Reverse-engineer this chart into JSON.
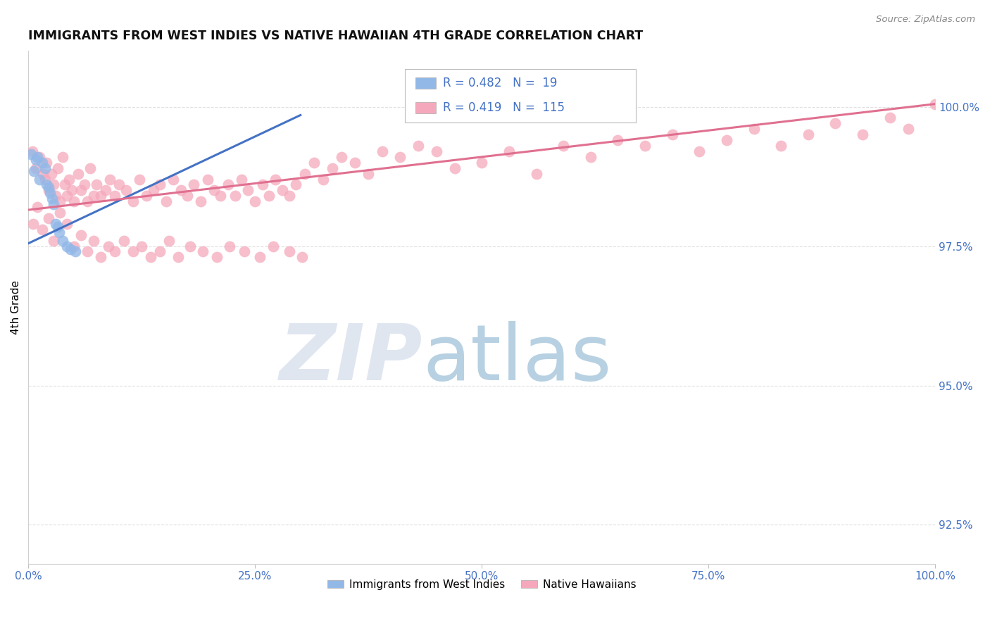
{
  "title": "IMMIGRANTS FROM WEST INDIES VS NATIVE HAWAIIAN 4TH GRADE CORRELATION CHART",
  "source": "Source: ZipAtlas.com",
  "ylabel": "4th Grade",
  "xlim": [
    0.0,
    1.0
  ],
  "ylim": [
    91.8,
    101.0
  ],
  "ytick_positions": [
    92.5,
    95.0,
    97.5,
    100.0
  ],
  "ytick_labels": [
    "92.5%",
    "95.0%",
    "97.5%",
    "100.0%"
  ],
  "xtick_positions": [
    0.0,
    0.25,
    0.5,
    0.75,
    1.0
  ],
  "xtick_labels": [
    "0.0%",
    "25.0%",
    "50.0%",
    "75.0%",
    "100.0%"
  ],
  "legend_blue_r": "0.482",
  "legend_blue_n": "19",
  "legend_pink_r": "0.419",
  "legend_pink_n": "115",
  "blue_color": "#92b8e8",
  "pink_color": "#f5a8bc",
  "blue_line_color": "#4472c4",
  "pink_line_color": "#e07090",
  "blue_scatter_x": [
    0.003,
    0.006,
    0.008,
    0.01,
    0.012,
    0.015,
    0.018,
    0.02,
    0.022,
    0.024,
    0.026,
    0.028,
    0.03,
    0.032,
    0.034,
    0.038,
    0.042,
    0.046,
    0.052
  ],
  "blue_scatter_y": [
    99.15,
    98.85,
    99.05,
    99.1,
    98.7,
    99.0,
    98.9,
    98.6,
    98.55,
    98.45,
    98.35,
    98.25,
    97.9,
    97.85,
    97.75,
    97.6,
    97.5,
    97.45,
    97.4
  ],
  "blue_line_x0": 0.0,
  "blue_line_x1": 0.3,
  "blue_line_y0": 97.55,
  "blue_line_y1": 99.85,
  "pink_line_x0": 0.0,
  "pink_line_x1": 1.0,
  "pink_line_y0": 98.15,
  "pink_line_y1": 100.05,
  "pink_scatter_x": [
    0.004,
    0.008,
    0.012,
    0.016,
    0.018,
    0.02,
    0.022,
    0.025,
    0.028,
    0.03,
    0.032,
    0.035,
    0.038,
    0.04,
    0.042,
    0.045,
    0.048,
    0.05,
    0.055,
    0.058,
    0.062,
    0.065,
    0.068,
    0.072,
    0.075,
    0.08,
    0.085,
    0.09,
    0.095,
    0.1,
    0.108,
    0.115,
    0.122,
    0.13,
    0.138,
    0.145,
    0.152,
    0.16,
    0.168,
    0.175,
    0.182,
    0.19,
    0.198,
    0.205,
    0.212,
    0.22,
    0.228,
    0.235,
    0.242,
    0.25,
    0.258,
    0.265,
    0.272,
    0.28,
    0.288,
    0.295,
    0.305,
    0.315,
    0.325,
    0.335,
    0.345,
    0.36,
    0.375,
    0.39,
    0.41,
    0.43,
    0.45,
    0.47,
    0.5,
    0.53,
    0.56,
    0.59,
    0.62,
    0.65,
    0.68,
    0.71,
    0.74,
    0.77,
    0.8,
    0.83,
    0.86,
    0.89,
    0.92,
    0.95,
    0.97,
    1.0,
    0.005,
    0.01,
    0.015,
    0.022,
    0.028,
    0.035,
    0.042,
    0.05,
    0.058,
    0.065,
    0.072,
    0.08,
    0.088,
    0.095,
    0.105,
    0.115,
    0.125,
    0.135,
    0.145,
    0.155,
    0.165,
    0.178,
    0.192,
    0.208,
    0.222,
    0.238,
    0.255,
    0.27,
    0.288,
    0.302
  ],
  "pink_scatter_y": [
    99.2,
    98.9,
    99.1,
    98.8,
    98.7,
    99.0,
    98.5,
    98.8,
    98.6,
    98.4,
    98.9,
    98.3,
    99.1,
    98.6,
    98.4,
    98.7,
    98.5,
    98.3,
    98.8,
    98.5,
    98.6,
    98.3,
    98.9,
    98.4,
    98.6,
    98.4,
    98.5,
    98.7,
    98.4,
    98.6,
    98.5,
    98.3,
    98.7,
    98.4,
    98.5,
    98.6,
    98.3,
    98.7,
    98.5,
    98.4,
    98.6,
    98.3,
    98.7,
    98.5,
    98.4,
    98.6,
    98.4,
    98.7,
    98.5,
    98.3,
    98.6,
    98.4,
    98.7,
    98.5,
    98.4,
    98.6,
    98.8,
    99.0,
    98.7,
    98.9,
    99.1,
    99.0,
    98.8,
    99.2,
    99.1,
    99.3,
    99.2,
    98.9,
    99.0,
    99.2,
    98.8,
    99.3,
    99.1,
    99.4,
    99.3,
    99.5,
    99.2,
    99.4,
    99.6,
    99.3,
    99.5,
    99.7,
    99.5,
    99.8,
    99.6,
    100.05,
    97.9,
    98.2,
    97.8,
    98.0,
    97.6,
    98.1,
    97.9,
    97.5,
    97.7,
    97.4,
    97.6,
    97.3,
    97.5,
    97.4,
    97.6,
    97.4,
    97.5,
    97.3,
    97.4,
    97.6,
    97.3,
    97.5,
    97.4,
    97.3,
    97.5,
    97.4,
    97.3,
    97.5,
    97.4,
    97.3
  ]
}
